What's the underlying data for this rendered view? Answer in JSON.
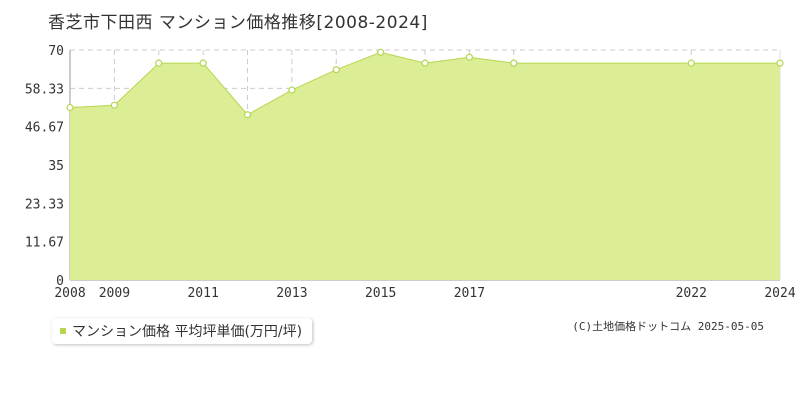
{
  "title": "香芝市下田西 マンション価格推移[2008-2024]",
  "legend": {
    "label": "マンション価格 平均坪単価(万円/坪)"
  },
  "credit": "(C)土地価格ドットコム 2025-05-05",
  "colors": {
    "fill": "#dbed95",
    "line": "#b6d651",
    "marker_fill": "#ffffff",
    "grid": "#cccccc"
  },
  "chart_data": {
    "type": "area",
    "title": "香芝市下田西 マンション価格推移[2008-2024]",
    "x": [
      2008,
      2009,
      2010,
      2011,
      2012,
      2013,
      2014,
      2015,
      2016,
      2017,
      2018,
      2022,
      2024
    ],
    "x_tick_labels": [
      "2008",
      "2009",
      "2011",
      "2013",
      "2015",
      "2017",
      "2022",
      "2024"
    ],
    "y_tick_labels": [
      "0",
      "11.67",
      "23.33",
      "35",
      "46.67",
      "58.33",
      "70"
    ],
    "series": [
      {
        "name": "マンション価格 平均坪単価(万円/坪)",
        "values": [
          52.5,
          53.2,
          66.0,
          66.0,
          50.3,
          57.8,
          64.0,
          69.3,
          66.0,
          67.8,
          66.0,
          66.0,
          66.0
        ]
      }
    ],
    "ylim": [
      0,
      70
    ],
    "grid": true,
    "legend_position": "bottom-left"
  }
}
